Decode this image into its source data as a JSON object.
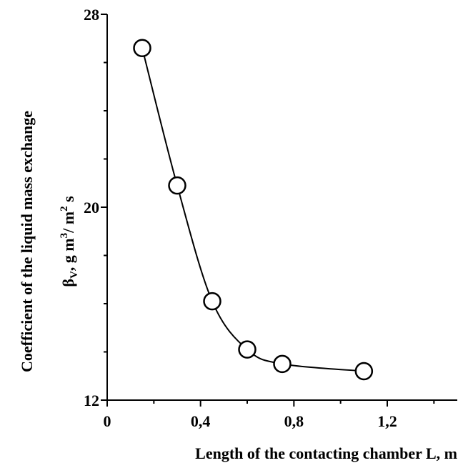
{
  "chart_data": {
    "type": "line",
    "title": "",
    "xlabel": "Length of the contacting chamber L, m",
    "ylabel_line1": "Coefficient of the liquid mass exchange",
    "ylabel_line2": {
      "symbol": "β",
      "subscript": "V",
      "text": ", g m",
      "sup1": "3",
      "text2": "/ m",
      "sup2": "2",
      "text3": " s"
    },
    "xlim": [
      0,
      1.5
    ],
    "ylim": [
      12,
      28
    ],
    "x_ticks": [
      0,
      0.4,
      0.8,
      1.2
    ],
    "x_tick_labels": [
      "0",
      "0,4",
      "0,8",
      "1,2"
    ],
    "x_minor_ticks": [
      0.2,
      0.6,
      1.0,
      1.4
    ],
    "y_ticks": [
      12,
      20,
      28
    ],
    "y_tick_labels": [
      "12",
      "20",
      "28"
    ],
    "y_minor_ticks": [
      14,
      16,
      18,
      22,
      24,
      26
    ],
    "grid": false,
    "marker": "open-circle",
    "series": [
      {
        "x": [
          0.15,
          0.3,
          0.45,
          0.6,
          0.75,
          1.1
        ],
        "y": [
          26.6,
          20.9,
          16.1,
          14.1,
          13.5,
          13.2
        ]
      }
    ]
  }
}
